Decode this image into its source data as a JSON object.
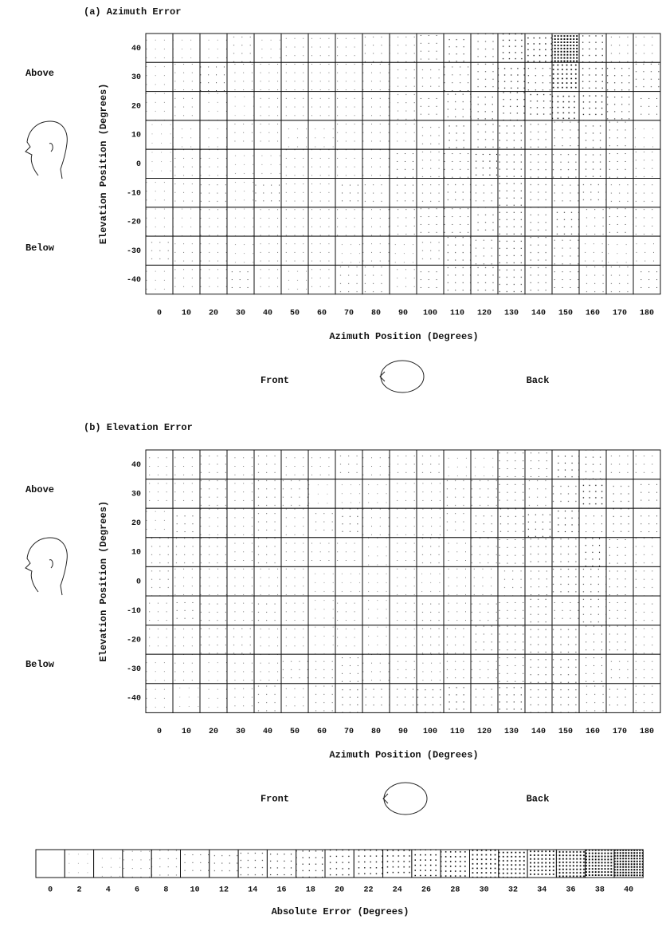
{
  "chart_data": [
    {
      "type": "heatmap",
      "title": "(a) Azimuth Error",
      "x_label": "Azimuth Position (Degrees)",
      "y_label": "Elevation Position (Degrees)",
      "annotations": [
        "Above",
        "Below",
        "Front",
        "Back"
      ],
      "x": [
        0,
        10,
        20,
        30,
        40,
        50,
        60,
        70,
        80,
        90,
        100,
        110,
        120,
        130,
        140,
        150,
        160,
        170,
        180
      ],
      "y": [
        40,
        30,
        20,
        10,
        0,
        -10,
        -20,
        -30,
        -40
      ],
      "values": [
        [
          4,
          4,
          4,
          8,
          4,
          6,
          6,
          6,
          8,
          8,
          10,
          14,
          12,
          20,
          22,
          38,
          18,
          8,
          8
        ],
        [
          4,
          6,
          10,
          6,
          6,
          6,
          6,
          6,
          6,
          8,
          8,
          10,
          12,
          18,
          14,
          30,
          18,
          14,
          12
        ],
        [
          4,
          6,
          4,
          2,
          6,
          6,
          6,
          6,
          6,
          8,
          10,
          12,
          14,
          16,
          18,
          24,
          20,
          14,
          10
        ],
        [
          2,
          4,
          4,
          6,
          6,
          4,
          4,
          6,
          6,
          6,
          8,
          14,
          12,
          14,
          12,
          10,
          14,
          10,
          4
        ],
        [
          2,
          6,
          6,
          4,
          4,
          6,
          6,
          6,
          6,
          10,
          8,
          10,
          16,
          14,
          12,
          12,
          14,
          10,
          8
        ],
        [
          4,
          6,
          8,
          4,
          10,
          6,
          6,
          10,
          8,
          10,
          8,
          12,
          10,
          14,
          12,
          10,
          12,
          8,
          8
        ],
        [
          4,
          4,
          6,
          4,
          6,
          6,
          6,
          6,
          6,
          8,
          10,
          10,
          12,
          14,
          12,
          14,
          8,
          10,
          8
        ],
        [
          8,
          6,
          6,
          4,
          6,
          6,
          6,
          4,
          6,
          4,
          8,
          12,
          10,
          14,
          12,
          10,
          6,
          4,
          6
        ],
        [
          4,
          6,
          6,
          10,
          6,
          4,
          6,
          8,
          8,
          6,
          10,
          12,
          12,
          14,
          12,
          10,
          8,
          8,
          10
        ]
      ]
    },
    {
      "type": "heatmap",
      "title": "(b) Elevation Error",
      "x_label": "Azimuth Position (Degrees)",
      "y_label": "Elevation Position (Degrees)",
      "annotations": [
        "Above",
        "Below",
        "Front",
        "Back"
      ],
      "x": [
        0,
        10,
        20,
        30,
        40,
        50,
        60,
        70,
        80,
        90,
        100,
        110,
        120,
        130,
        140,
        150,
        160,
        170,
        180
      ],
      "y": [
        40,
        30,
        20,
        10,
        0,
        -10,
        -20,
        -30,
        -40
      ],
      "values": [
        [
          6,
          6,
          8,
          6,
          8,
          6,
          6,
          8,
          6,
          8,
          8,
          4,
          4,
          10,
          10,
          16,
          14,
          8,
          8
        ],
        [
          6,
          6,
          8,
          6,
          8,
          8,
          2,
          4,
          4,
          6,
          6,
          8,
          8,
          10,
          8,
          12,
          20,
          12,
          10
        ],
        [
          4,
          10,
          6,
          6,
          8,
          6,
          8,
          12,
          6,
          6,
          6,
          8,
          10,
          12,
          14,
          16,
          10,
          12,
          10
        ],
        [
          8,
          8,
          8,
          6,
          8,
          6,
          6,
          6,
          4,
          6,
          8,
          6,
          8,
          10,
          12,
          12,
          16,
          10,
          8
        ],
        [
          8,
          6,
          6,
          6,
          6,
          6,
          4,
          4,
          4,
          6,
          4,
          6,
          6,
          8,
          10,
          12,
          12,
          10,
          8
        ],
        [
          6,
          10,
          8,
          6,
          8,
          6,
          4,
          6,
          4,
          6,
          8,
          6,
          8,
          10,
          12,
          10,
          12,
          10,
          8
        ],
        [
          6,
          6,
          8,
          8,
          6,
          6,
          4,
          6,
          4,
          6,
          8,
          8,
          10,
          10,
          12,
          12,
          10,
          10,
          8
        ],
        [
          4,
          6,
          4,
          6,
          6,
          8,
          8,
          10,
          6,
          8,
          6,
          8,
          8,
          10,
          12,
          12,
          10,
          8,
          8
        ],
        [
          4,
          2,
          4,
          6,
          8,
          6,
          8,
          12,
          10,
          10,
          12,
          14,
          10,
          14,
          12,
          12,
          8,
          10,
          8
        ]
      ]
    },
    {
      "type": "colorbar",
      "title": "Absolute Error (Degrees)",
      "levels": [
        0,
        2,
        4,
        6,
        8,
        10,
        12,
        14,
        16,
        18,
        20,
        22,
        24,
        26,
        28,
        30,
        32,
        34,
        36,
        38,
        40
      ]
    }
  ]
}
